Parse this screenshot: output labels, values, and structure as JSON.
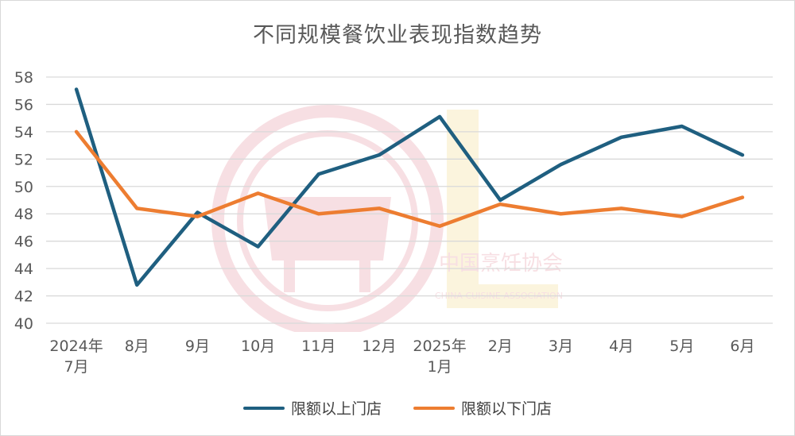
{
  "chart_data": {
    "type": "line",
    "title": "不同规模餐饮业表现指数趋势",
    "categories": [
      [
        "2024年",
        "7月"
      ],
      [
        "8月"
      ],
      [
        "9月"
      ],
      [
        "10月"
      ],
      [
        "11月"
      ],
      [
        "12月"
      ],
      [
        "2025年",
        "1月"
      ],
      [
        "2月"
      ],
      [
        "3月"
      ],
      [
        "4月"
      ],
      [
        "5月"
      ],
      [
        "6月"
      ]
    ],
    "series": [
      {
        "name": "限额以上门店",
        "color": "#1f5f80",
        "values": [
          57.1,
          42.8,
          48.1,
          45.6,
          50.9,
          52.3,
          55.1,
          49.0,
          51.6,
          53.6,
          54.4,
          52.3
        ]
      },
      {
        "name": "限额以下门店",
        "color": "#ed7d31",
        "values": [
          54.0,
          48.4,
          47.8,
          49.5,
          48.0,
          48.4,
          47.1,
          48.7,
          48.0,
          48.4,
          47.8,
          49.2
        ]
      }
    ],
    "ylim": [
      40,
      58
    ],
    "yticks": [
      40,
      42,
      44,
      46,
      48,
      50,
      52,
      54,
      56,
      58
    ],
    "grid": true,
    "legend_position": "bottom"
  },
  "watermark": {
    "text_cn": "中国烹饪协会",
    "text_en": "CHINA CUISINE ASSOCIATION",
    "color": "#c8102e",
    "accent": "#e8b200"
  }
}
